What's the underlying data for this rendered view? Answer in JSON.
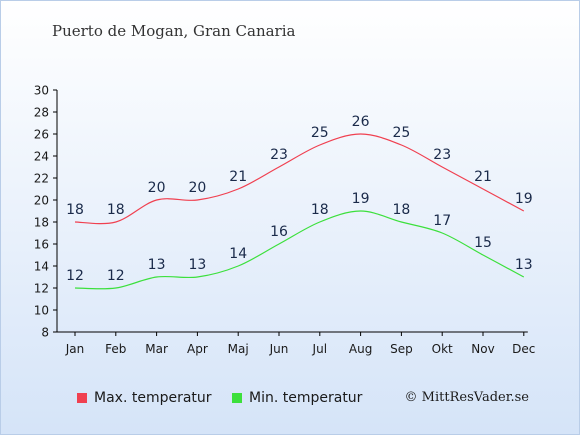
{
  "title": "Puerto de Mogan, Gran Canaria",
  "copyright": "© MittResVader.se",
  "legend": {
    "max_label": "Max. temperatur",
    "min_label": "Min. temperatur"
  },
  "colors": {
    "max": "#f04050",
    "min": "#3ce03c",
    "label": "#1a2a4a",
    "axis": "#000000"
  },
  "chart_data": {
    "type": "line",
    "categories": [
      "Jan",
      "Feb",
      "Mar",
      "Apr",
      "Maj",
      "Jun",
      "Jul",
      "Aug",
      "Sep",
      "Okt",
      "Nov",
      "Dec"
    ],
    "series": [
      {
        "name": "Max. temperatur",
        "values": [
          18,
          18,
          20,
          20,
          21,
          23,
          25,
          26,
          25,
          23,
          21,
          19
        ]
      },
      {
        "name": "Min. temperatur",
        "values": [
          12,
          12,
          13,
          13,
          14,
          16,
          18,
          19,
          18,
          17,
          15,
          13
        ]
      }
    ],
    "yticks": [
      8,
      10,
      12,
      14,
      16,
      18,
      20,
      22,
      24,
      26,
      28,
      30
    ],
    "ylim": [
      8,
      30
    ],
    "grid": false,
    "legend_position": "bottom-left"
  }
}
